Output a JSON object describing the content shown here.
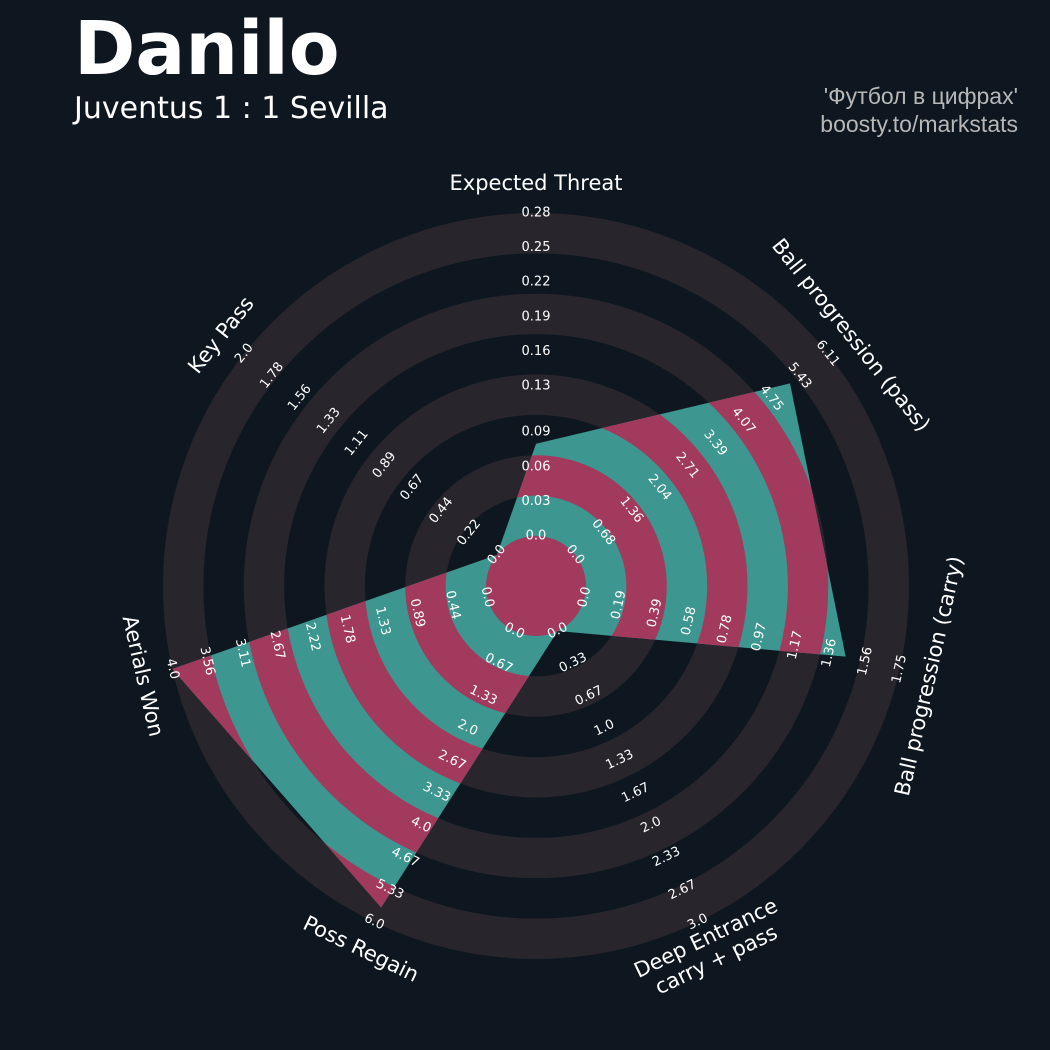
{
  "chart_data": {
    "type": "radar",
    "title": "Danilo",
    "subtitle": "Juventus 1 : 1 Sevilla",
    "annotations": [
      "'Футбол в цифрах'",
      "boosty.to/markstats"
    ],
    "categories": [
      "Expected Threat",
      "Ball progression (pass)",
      "Ball progression (carry)",
      "Deep Entrance\ncarry + pass",
      "Poss Regain",
      "Aerials Won",
      "Key Pass"
    ],
    "values": [
      0.08,
      5.2,
      1.45,
      0,
      5.7,
      4.0,
      0
    ],
    "axes": [
      {
        "ylim": [
          0,
          0.28
        ],
        "yticks": [
          {
            "value": 0,
            "label": "0.0"
          },
          0.03,
          0.06,
          0.09,
          0.13,
          0.16,
          0.19,
          0.22,
          0.25,
          0.28
        ]
      },
      {
        "ylim": [
          0,
          6.11
        ],
        "yticks": [
          {
            "value": 0,
            "label": "0.0"
          },
          0.68,
          1.36,
          2.04,
          2.71,
          3.39,
          4.07,
          4.75,
          5.43,
          6.11
        ]
      },
      {
        "ylim": [
          0,
          1.75
        ],
        "yticks": [
          {
            "value": 0,
            "label": "0.0"
          },
          0.19,
          0.39,
          0.58,
          0.78,
          0.97,
          1.17,
          1.36,
          1.56,
          1.75
        ]
      },
      {
        "ylim": [
          0,
          3
        ],
        "yticks": [
          {
            "value": 0,
            "label": "0.0"
          },
          0.33,
          0.67,
          {
            "value": 1,
            "label": "1.0"
          },
          1.33,
          1.67,
          {
            "value": 2,
            "label": "2.0"
          },
          2.33,
          2.67,
          {
            "value": 3,
            "label": "3.0"
          }
        ]
      },
      {
        "ylim": [
          0,
          6
        ],
        "yticks": [
          {
            "value": 0,
            "label": "0.0"
          },
          0.67,
          1.33,
          {
            "value": 2,
            "label": "2.0"
          },
          2.67,
          3.33,
          {
            "value": 4,
            "label": "4.0"
          },
          4.67,
          5.33,
          {
            "value": 6,
            "label": "6.0"
          }
        ]
      },
      {
        "ylim": [
          0,
          4
        ],
        "yticks": [
          {
            "value": 0,
            "label": "0.0"
          },
          0.44,
          0.89,
          1.33,
          1.78,
          2.22,
          2.67,
          3.11,
          3.56,
          {
            "value": 4,
            "label": "4.0"
          }
        ]
      },
      {
        "ylim": [
          0,
          2
        ],
        "yticks": [
          {
            "value": 0,
            "label": "0.0"
          },
          0.22,
          0.44,
          0.67,
          0.89,
          1.11,
          1.33,
          1.56,
          1.78,
          {
            "value": 2,
            "label": "2.0"
          }
        ]
      }
    ],
    "polygon_color": "#3d9690",
    "ring_color": "#28252c",
    "highlight_color": "#a23a5e"
  }
}
